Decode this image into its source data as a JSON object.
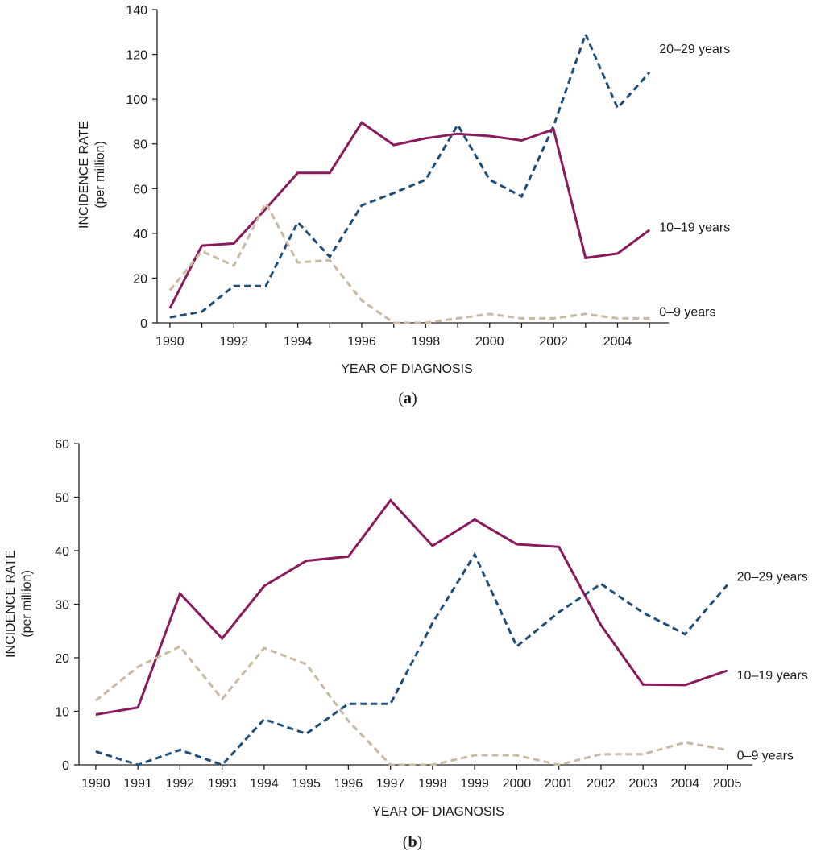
{
  "chart_data": [
    {
      "type": "line",
      "panel_label": "a",
      "xlabel": "YEAR OF DIAGNOSIS",
      "ylabel_line1": "INCIDENCE RATE",
      "ylabel_line2": "(per million)",
      "ylim": [
        0,
        140
      ],
      "yticks": [
        "0",
        "20",
        "40",
        "60",
        "80",
        "100",
        "120",
        "140"
      ],
      "xlim": [
        1989.6,
        2005.6
      ],
      "xtick_labels": [
        "1990",
        "1992",
        "1994",
        "1996",
        "1998",
        "2000",
        "2002",
        "2004"
      ],
      "x": [
        1990,
        1991,
        1992,
        1993,
        1994,
        1995,
        1996,
        1997,
        1998,
        1999,
        2000,
        2001,
        2002,
        2003,
        2004,
        2005
      ],
      "series": [
        {
          "name": "20–29 years",
          "label": "20–29 years",
          "color": "#1f4e79",
          "dash": "dashed",
          "values": [
            2.5,
            5,
            16.5,
            16.5,
            45,
            29.5,
            52.5,
            58,
            64,
            88.5,
            64,
            56.5,
            88,
            129,
            96,
            112
          ]
        },
        {
          "name": "10–19 years",
          "label": "10–19 years",
          "color": "#8b1a5c",
          "dash": "solid",
          "values": [
            6.5,
            34.5,
            35.5,
            51,
            67,
            67,
            89.5,
            79.5,
            82.5,
            84.5,
            83.5,
            81.5,
            86.5,
            29,
            31,
            41.5
          ]
        },
        {
          "name": "0–9 years",
          "label": "0–9 years",
          "color": "#c9b8a2",
          "dash": "dashed",
          "values": [
            14.5,
            32,
            25.5,
            53.5,
            27,
            28,
            10,
            0,
            0,
            2,
            4,
            2,
            2,
            4,
            2,
            2
          ]
        }
      ]
    },
    {
      "type": "line",
      "panel_label": "b",
      "xlabel": "YEAR OF DIAGNOSIS",
      "ylabel_line1": "INCIDENCE RATE",
      "ylabel_line2": "(per million)",
      "ylim": [
        0,
        60
      ],
      "yticks": [
        "0",
        "10",
        "20",
        "30",
        "40",
        "50",
        "60"
      ],
      "xlim": [
        1989.6,
        2005.6
      ],
      "xtick_labels": [
        "1990",
        "1991",
        "1992",
        "1993",
        "1994",
        "1995",
        "1996",
        "1997",
        "1998",
        "1999",
        "2000",
        "2001",
        "2002",
        "2003",
        "2004",
        "2005"
      ],
      "x": [
        1990,
        1991,
        1992,
        1993,
        1994,
        1995,
        1996,
        1997,
        1998,
        1999,
        2000,
        2001,
        2002,
        2003,
        2004,
        2005
      ],
      "series": [
        {
          "name": "20–29 years",
          "label": "20–29 years",
          "color": "#1f4e79",
          "dash": "dashed",
          "values": [
            2.5,
            0,
            2.8,
            0,
            8.5,
            5.8,
            11.4,
            11.4,
            26.5,
            39.3,
            22.1,
            28.5,
            33.8,
            28.4,
            24.4,
            33.6
          ]
        },
        {
          "name": "10–19 years",
          "label": "10–19 years",
          "color": "#8b1a5c",
          "dash": "solid",
          "values": [
            9.4,
            10.7,
            32,
            23.6,
            33.4,
            38.1,
            38.9,
            49.4,
            40.9,
            45.8,
            41.2,
            40.7,
            26.1,
            15,
            14.9,
            17.6
          ]
        },
        {
          "name": "0–9 years",
          "label": "0–9 years",
          "color": "#c9b8a2",
          "dash": "dashed",
          "values": [
            12,
            18.3,
            22.1,
            12.3,
            21.8,
            18.8,
            8.2,
            0,
            0,
            1.8,
            1.8,
            0,
            2,
            2,
            4.2,
            2.8
          ]
        }
      ]
    }
  ]
}
